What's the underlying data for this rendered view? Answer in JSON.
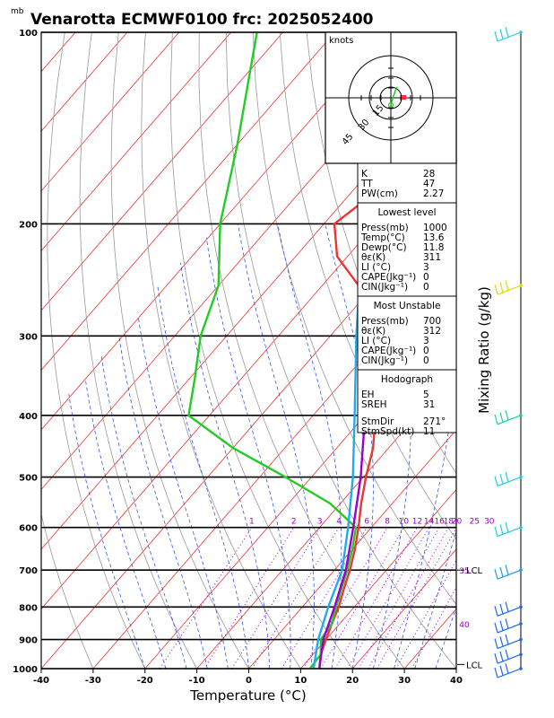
{
  "title": "Venarotta ECMWF0100  frc: 2025052400",
  "units_label": "mb",
  "chart_data": {
    "type": "skew-t",
    "xlabel": "Temperature (°C)",
    "right_label": "Mixing Ratio (g/kg)",
    "x_ticks": [
      -40,
      -30,
      -20,
      -10,
      0,
      10,
      20,
      30,
      40
    ],
    "p_ticks": [
      100,
      200,
      300,
      400,
      500,
      600,
      700,
      800,
      900,
      1000
    ],
    "xlim": [
      -40,
      40
    ],
    "plim": [
      1000,
      100
    ],
    "mixing_ratio_labels": [
      "1",
      "2",
      "3",
      "4",
      "6",
      "8",
      "10",
      "12",
      "14",
      "16",
      "18",
      "20",
      "25",
      "30"
    ],
    "mixing_ratio_values": [
      1,
      2,
      3,
      4,
      6,
      8,
      10,
      12,
      14,
      16,
      18,
      20,
      25,
      30
    ],
    "right_extra_labels": [
      "35",
      "40"
    ],
    "series": [
      {
        "color": "#ee3333",
        "points": [
          [
            13.6,
            1000
          ],
          [
            11.5,
            950
          ],
          [
            10,
            900
          ],
          [
            8.5,
            850
          ],
          [
            7,
            800
          ],
          [
            5,
            750
          ],
          [
            3,
            700
          ],
          [
            0.5,
            650
          ],
          [
            -2.5,
            600
          ],
          [
            -6,
            550
          ],
          [
            -9.5,
            500
          ],
          [
            -13,
            450
          ],
          [
            -18,
            400
          ],
          [
            -23,
            350
          ],
          [
            -30,
            300
          ],
          [
            -37,
            275
          ],
          [
            -43,
            250
          ],
          [
            -52,
            225
          ],
          [
            -58,
            200
          ],
          [
            -55,
            175
          ],
          [
            -54,
            150
          ],
          [
            -56,
            125
          ],
          [
            -53,
            100
          ]
        ]
      },
      {
        "color": "#22cc22",
        "points": [
          [
            11.8,
            1000
          ],
          [
            11.5,
            950
          ],
          [
            9,
            900
          ],
          [
            8.5,
            850
          ],
          [
            6.5,
            800
          ],
          [
            4.5,
            750
          ],
          [
            2.5,
            700
          ],
          [
            0,
            650
          ],
          [
            -3,
            600
          ],
          [
            -12,
            550
          ],
          [
            -25,
            500
          ],
          [
            -40,
            450
          ],
          [
            -54,
            400
          ],
          [
            -59,
            350
          ],
          [
            -65,
            300
          ],
          [
            -70,
            250
          ],
          [
            -80,
            200
          ],
          [
            -90,
            150
          ],
          [
            -105,
            100
          ]
        ]
      },
      {
        "color": "#9900cc",
        "points": [
          [
            13.6,
            1000
          ],
          [
            9.5,
            900
          ],
          [
            6.2,
            800
          ],
          [
            2.2,
            700
          ],
          [
            -3.5,
            600
          ],
          [
            -10.5,
            500
          ],
          [
            -20,
            400
          ],
          [
            -33,
            300
          ],
          [
            -50,
            200
          ],
          [
            -74,
            100
          ]
        ]
      },
      {
        "color": "#22aaee",
        "points": [
          [
            12.5,
            1000
          ],
          [
            8.5,
            900
          ],
          [
            5,
            800
          ],
          [
            1.5,
            700
          ],
          [
            -4.5,
            600
          ],
          [
            -12,
            500
          ],
          [
            -22,
            400
          ],
          [
            -35,
            300
          ],
          [
            -52.5,
            200
          ],
          [
            -76,
            100
          ]
        ]
      }
    ]
  },
  "hodograph": {
    "units": "knots",
    "ring_labels": [
      "15",
      "30",
      "45"
    ]
  },
  "indices": {
    "rows": [
      {
        "label": "K",
        "value": "28"
      },
      {
        "label": "TT",
        "value": "47"
      },
      {
        "label": "PW(cm)",
        "value": "2.27"
      }
    ]
  },
  "lowest_level": {
    "header": "Lowest level",
    "rows": [
      {
        "label": "Press(mb)",
        "value": "1000"
      },
      {
        "label": "Temp(°C)",
        "value": "13.6"
      },
      {
        "label": "Dewp(°C)",
        "value": "11.8"
      },
      {
        "label": "θε(K)",
        "value": "311"
      },
      {
        "label": "LI (°C)",
        "value": "3"
      },
      {
        "label": "CAPE(Jkg⁻¹)",
        "value": "0"
      },
      {
        "label": "CIN(Jkg⁻¹)",
        "value": "0"
      }
    ]
  },
  "most_unstable": {
    "header": "Most Unstable",
    "rows": [
      {
        "label": "Press(mb)",
        "value": "700"
      },
      {
        "label": "θε(K)",
        "value": "312"
      },
      {
        "label": "LI (°C)",
        "value": "3"
      },
      {
        "label": "CAPE(Jkg⁻¹)",
        "value": "0"
      },
      {
        "label": "CIN(Jkg⁻¹)",
        "value": "0"
      }
    ]
  },
  "hodograph_params": {
    "header": "Hodograph",
    "rows": [
      {
        "label": "EH",
        "value": "5"
      },
      {
        "label": "SREH",
        "value": "31"
      },
      {
        "label": "StmDir",
        "value": "271°"
      },
      {
        "label": "StmSpd(kt)",
        "value": "11"
      }
    ]
  },
  "lcl_markers": [
    {
      "label": "LCL",
      "pressure": 700
    },
    {
      "label": "LCL",
      "pressure": 985
    }
  ],
  "wind_barbs": [
    {
      "p": 100,
      "color": "#22ccdd"
    },
    {
      "p": 250,
      "color": "#dddd00"
    },
    {
      "p": 400,
      "color": "#22ccaa"
    },
    {
      "p": 500,
      "color": "#22ccdd"
    },
    {
      "p": 600,
      "color": "#22ccdd"
    },
    {
      "p": 700,
      "color": "#2299ee"
    },
    {
      "p": 800,
      "color": "#2266ee"
    },
    {
      "p": 850,
      "color": "#2266ee"
    },
    {
      "p": 900,
      "color": "#2266ee"
    },
    {
      "p": 950,
      "color": "#2266ee"
    },
    {
      "p": 1000,
      "color": "#2266ee"
    }
  ]
}
